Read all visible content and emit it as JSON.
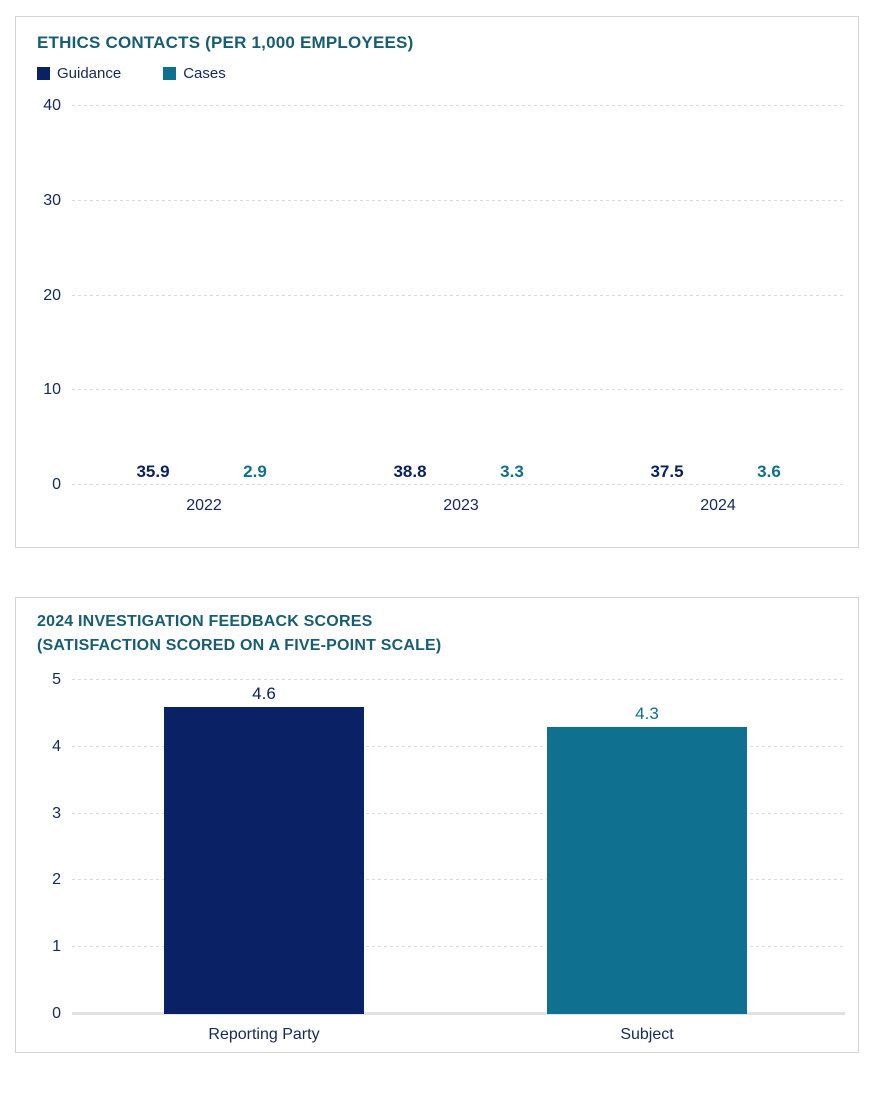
{
  "colors": {
    "guidance_navy": "#0a2165",
    "cases_teal": "#10708f",
    "title_teal": "#175e74",
    "axis_text_navy": "#152a60",
    "gridline": "#d9d9d9"
  },
  "chart_data": [
    {
      "type": "bar",
      "title": "ETHICS CONTACTS (PER 1,000 EMPLOYEES)",
      "categories": [
        "2022",
        "2023",
        "2024"
      ],
      "series": [
        {
          "name": "Guidance",
          "values": [
            35.9,
            38.8,
            37.5
          ],
          "color": "#0a2165"
        },
        {
          "name": "Cases",
          "values": [
            2.9,
            3.3,
            3.6
          ],
          "color": "#10708f"
        }
      ],
      "ylim": [
        0,
        40
      ],
      "yticks": [
        0,
        10,
        20,
        30,
        40
      ],
      "grid": "dashed horizontal",
      "legend_position": "top-left"
    },
    {
      "type": "bar",
      "title": "2024 INVESTIGATION FEEDBACK SCORES",
      "subtitle": "(SATISFACTION SCORED ON A FIVE-POINT SCALE)",
      "categories": [
        "Reporting Party",
        "Subject"
      ],
      "values": [
        4.6,
        4.3
      ],
      "bar_colors": [
        "#0a2165",
        "#10708f"
      ],
      "ylim": [
        0,
        5
      ],
      "yticks": [
        0,
        1,
        2,
        3,
        4,
        5
      ],
      "grid": "dashed horizontal",
      "legend_position": "none"
    }
  ]
}
